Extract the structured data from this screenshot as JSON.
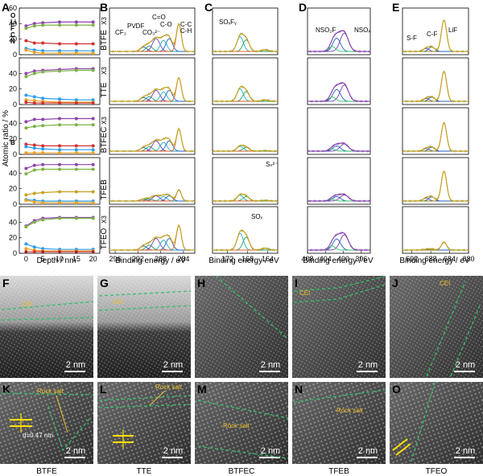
{
  "panel_labels": [
    "A",
    "B",
    "C",
    "D",
    "E",
    "F",
    "G",
    "H",
    "I",
    "J",
    "K",
    "L",
    "M",
    "N",
    "O"
  ],
  "colors": {
    "o": "#7cb342",
    "li": "#8e44ad",
    "f": "#2a9df4",
    "c": "#f0a020",
    "n": "#d23030",
    "b": "#c8a020",
    "blue": "#2060c0",
    "green": "#20a060",
    "olive": "#8a8a10",
    "fit_orange": "#e06020",
    "cyan": "#20b0c0",
    "purple": "#7040b0",
    "dash": "#33c06a",
    "scale": "#ffffff",
    "rs": "#f0c030"
  },
  "legend_a": [
    "O",
    "Li",
    "F",
    "C",
    "N"
  ],
  "panel_a": {
    "ylabel": "Atomic ratio / %",
    "xlabel": "Depth / nm",
    "xticks": [
      "0",
      "5",
      "10",
      "15",
      "20"
    ],
    "yticks": [
      "0",
      "20",
      "40",
      "60"
    ],
    "b_label": "B"
  },
  "chart_data": {
    "type": "line",
    "title": "Atomic ratio depth profiles",
    "xlabel": "Depth / nm",
    "ylabel": "Atomic ratio / %",
    "x": [
      0,
      2.5,
      5,
      10,
      15,
      20
    ],
    "ylim": [
      0,
      60
    ],
    "subplots": [
      {
        "name": "BTFE",
        "series": [
          {
            "name": "Li",
            "values": [
              37,
              40,
              41,
              42,
              42,
              42
            ]
          },
          {
            "name": "O",
            "values": [
              34,
              37,
              38,
              38,
              38,
              38
            ]
          },
          {
            "name": "N",
            "values": [
              18,
              15,
              15,
              14,
              14,
              14
            ]
          },
          {
            "name": "F",
            "values": [
              8,
              6,
              5,
              5,
              5,
              5
            ]
          },
          {
            "name": "C",
            "values": [
              6,
              3,
              2,
              2,
              2,
              2
            ]
          }
        ]
      },
      {
        "name": "TTE",
        "series": [
          {
            "name": "Li",
            "values": [
              40,
              43,
              44,
              45,
              46,
              46
            ]
          },
          {
            "name": "O",
            "values": [
              36,
              40,
              42,
              43,
              44,
              44
            ]
          },
          {
            "name": "F",
            "values": [
              12,
              10,
              8,
              7,
              6,
              6
            ]
          },
          {
            "name": "C",
            "values": [
              6,
              5,
              4,
              3,
              3,
              3
            ]
          },
          {
            "name": "N",
            "values": [
              3,
              2,
              2,
              2,
              2,
              2
            ]
          }
        ]
      },
      {
        "name": "BTFEC",
        "series": [
          {
            "name": "Li",
            "values": [
              42,
              45,
              45,
              46,
              46,
              46
            ]
          },
          {
            "name": "O",
            "values": [
              34,
              36,
              37,
              38,
              38,
              38
            ]
          },
          {
            "name": "N",
            "values": [
              13,
              12,
              11,
              11,
              11,
              11
            ]
          },
          {
            "name": "F",
            "values": [
              10,
              8,
              7,
              6,
              6,
              6
            ]
          },
          {
            "name": "C",
            "values": [
              2,
              2,
              2,
              2,
              2,
              2
            ]
          }
        ]
      },
      {
        "name": "TFEB",
        "series": [
          {
            "name": "Li",
            "values": [
              46,
              50,
              51,
              51,
              51,
              51
            ]
          },
          {
            "name": "O",
            "values": [
              39,
              44,
              45,
              45,
              45,
              45
            ]
          },
          {
            "name": "B",
            "values": [
              12,
              14,
              15,
              16,
              16,
              16
            ]
          },
          {
            "name": "F",
            "values": [
              6,
              5,
              4,
              4,
              4,
              4
            ]
          },
          {
            "name": "C",
            "values": [
              5,
              3,
              2,
              2,
              2,
              2
            ]
          }
        ]
      },
      {
        "name": "TFEO",
        "series": [
          {
            "name": "Li",
            "values": [
              35,
              42,
              45,
              46,
              46,
              46
            ]
          },
          {
            "name": "O",
            "values": [
              34,
              40,
              43,
              45,
              45,
              45
            ]
          },
          {
            "name": "F",
            "values": [
              12,
              8,
              6,
              5,
              5,
              5
            ]
          },
          {
            "name": "C",
            "values": [
              6,
              4,
              3,
              3,
              3,
              3
            ]
          },
          {
            "name": "N",
            "values": [
              2,
              2,
              2,
              2,
              2,
              2
            ]
          }
        ]
      }
    ]
  },
  "samples": [
    "BTFE",
    "TTE",
    "BTFEC",
    "TFEB",
    "TFEO"
  ],
  "multiplier": "X3",
  "panel_b": {
    "xlabel": "Binding energy / eV",
    "xticks": [
      "296",
      "292",
      "288",
      "284"
    ],
    "peaks": [
      "CF₃",
      "PVDF",
      "CO₃²⁻",
      "C=O",
      "C-O",
      "C-C",
      "C-H"
    ]
  },
  "panel_c": {
    "xlabel": "Binding energy / eV",
    "xticks": [
      "172",
      "168",
      "164"
    ],
    "peaks": [
      "SOₓFᵧ",
      "Sₙ²⁻",
      "SOₓ"
    ]
  },
  "panel_d": {
    "xlabel": "Binding energy / eV",
    "xticks": [
      "408",
      "404",
      "400",
      "396"
    ],
    "peaks": [
      "NSO₂F",
      "NSOₓ"
    ]
  },
  "panel_e": {
    "xlabel": "Binding energy / eV",
    "xticks": [
      "692",
      "688",
      "684",
      "680"
    ],
    "peaks": [
      "S-F",
      "C-F",
      "LiF"
    ]
  },
  "tem": {
    "scale": "2 nm",
    "cei": "CEI",
    "rock_salt": "Rock salt",
    "dspacing": "d=0.47 nm"
  },
  "bottom_labels": [
    "BTFE",
    "TTE",
    "BTFEC",
    "TFEB",
    "TFEO"
  ]
}
